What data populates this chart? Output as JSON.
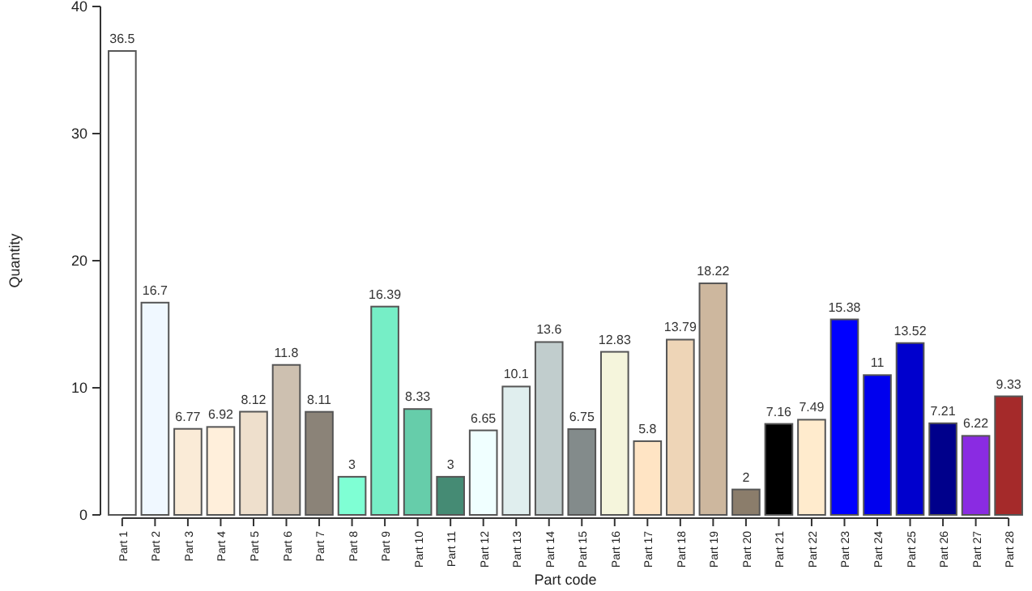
{
  "chart_data": {
    "type": "bar",
    "xlabel": "Part code",
    "ylabel": "Quantity",
    "categories": [
      "Part 1",
      "Part 2",
      "Part 3",
      "Part 4",
      "Part 5",
      "Part 6",
      "Part 7",
      "Part 8",
      "Part 9",
      "Part 10",
      "Part 11",
      "Part 12",
      "Part 13",
      "Part 14",
      "Part 15",
      "Part 16",
      "Part 17",
      "Part 18",
      "Part 19",
      "Part 20",
      "Part 21",
      "Part 22",
      "Part 23",
      "Part 24",
      "Part 25",
      "Part 26",
      "Part 27",
      "Part 28"
    ],
    "values": [
      36.5,
      16.7,
      6.77,
      6.92,
      8.12,
      11.8,
      8.11,
      3,
      16.39,
      8.33,
      3,
      6.65,
      10.1,
      13.6,
      6.75,
      12.83,
      5.8,
      13.79,
      18.22,
      2,
      7.16,
      7.49,
      15.38,
      11,
      13.52,
      7.21,
      6.22,
      9.33
    ],
    "colors": [
      "#ffffff",
      "#f0f8ff",
      "#faebd7",
      "#ffefdb",
      "#eedfcc",
      "#cdc0b0",
      "#8b8378",
      "#7fffd4",
      "#76eec6",
      "#66cdaa",
      "#458b74",
      "#f0ffff",
      "#e0eeee",
      "#c1cdcd",
      "#838b8b",
      "#f5f5dc",
      "#ffe4c4",
      "#eed5b7",
      "#cdb79e",
      "#8b7d6b",
      "#000000",
      "#ffebcd",
      "#0000ff",
      "#0000ee",
      "#0000cd",
      "#00008b",
      "#8a2be2",
      "#a52a2a"
    ],
    "ylim": [
      0,
      40
    ],
    "yticks": [
      0,
      10,
      20,
      30,
      40
    ],
    "data_labels": true,
    "grid": false
  }
}
